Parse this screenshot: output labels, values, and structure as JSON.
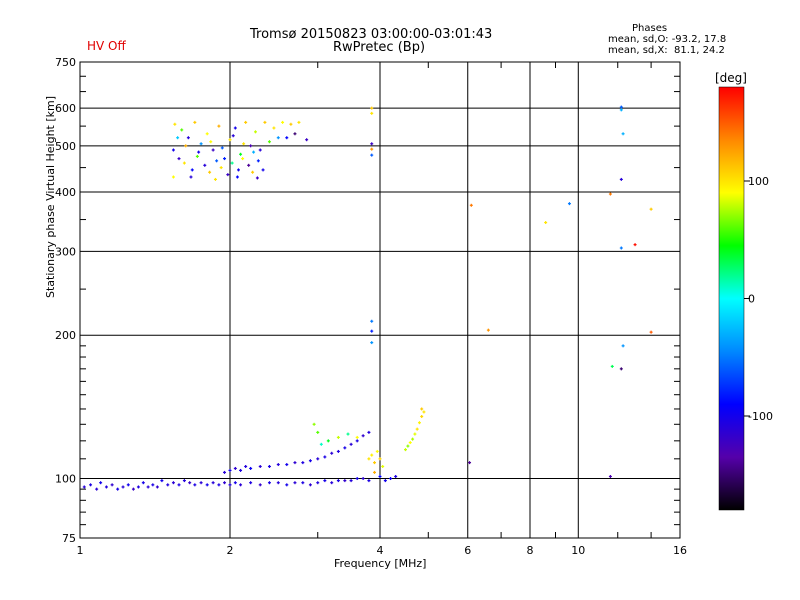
{
  "header": {
    "title_line1": "Tromsø 20150823 03:00:00-03:01:43",
    "title_line2": "RwPretec (Bp)",
    "status": "HV Off",
    "phases_title": "Phases",
    "phases_o": "mean, sd,O: -93.2, 17.8",
    "phases_x": "mean, sd,X:  81.1, 24.2"
  },
  "colorbar": {
    "unit": "[deg]",
    "ticks": [
      "100",
      "0",
      "-100"
    ],
    "tick_values": [
      100,
      0,
      -100
    ],
    "range": [
      -180,
      180
    ],
    "colors": [
      "#000000",
      "#5500aa",
      "#0000ff",
      "#0088ff",
      "#00ffff",
      "#00ff00",
      "#ffff00",
      "#ff8800",
      "#ff0000"
    ]
  },
  "chart_data": {
    "type": "scatter",
    "title": "Tromsø 20150823 03:00:00-03:01:43",
    "subtitle": "RwPretec (Bp)",
    "xlabel": "Frequency [MHz]",
    "ylabel": "Stationary phase Virtual Height [km]",
    "x_scale": "log",
    "y_scale": "log",
    "xlim": [
      1,
      16
    ],
    "ylim": [
      75,
      750
    ],
    "x_ticks": [
      1,
      2,
      4,
      6,
      8,
      10,
      16
    ],
    "x_tick_labels": [
      "1",
      "2",
      "4",
      "6",
      "8",
      "10",
      "16"
    ],
    "y_ticks": [
      75,
      100,
      200,
      300,
      400,
      500,
      600,
      750
    ],
    "y_tick_labels": [
      "75",
      "100",
      "200",
      "300",
      "400",
      "500",
      "600",
      "750"
    ],
    "grid": true,
    "color_quantity": "phase [deg]",
    "points": [
      {
        "x": 1.02,
        "y": 96,
        "c": -110
      },
      {
        "x": 1.05,
        "y": 97,
        "c": -105
      },
      {
        "x": 1.08,
        "y": 95,
        "c": -112
      },
      {
        "x": 1.1,
        "y": 98,
        "c": -100
      },
      {
        "x": 1.13,
        "y": 96,
        "c": -108
      },
      {
        "x": 1.16,
        "y": 97,
        "c": -115
      },
      {
        "x": 1.19,
        "y": 95,
        "c": -102
      },
      {
        "x": 1.22,
        "y": 96,
        "c": -110
      },
      {
        "x": 1.25,
        "y": 97,
        "c": -98
      },
      {
        "x": 1.28,
        "y": 95,
        "c": -120
      },
      {
        "x": 1.31,
        "y": 96,
        "c": -106
      },
      {
        "x": 1.34,
        "y": 98,
        "c": -101
      },
      {
        "x": 1.37,
        "y": 96,
        "c": -111
      },
      {
        "x": 1.4,
        "y": 97,
        "c": -104
      },
      {
        "x": 1.43,
        "y": 96,
        "c": -116
      },
      {
        "x": 1.46,
        "y": 99,
        "c": -100
      },
      {
        "x": 1.5,
        "y": 97,
        "c": -107
      },
      {
        "x": 1.54,
        "y": 98,
        "c": -113
      },
      {
        "x": 1.58,
        "y": 97,
        "c": -103
      },
      {
        "x": 1.62,
        "y": 99,
        "c": -109
      },
      {
        "x": 1.66,
        "y": 98,
        "c": -118
      },
      {
        "x": 1.7,
        "y": 97,
        "c": -105
      },
      {
        "x": 1.75,
        "y": 98,
        "c": -112
      },
      {
        "x": 1.8,
        "y": 97,
        "c": -99
      },
      {
        "x": 1.85,
        "y": 98,
        "c": -110
      },
      {
        "x": 1.9,
        "y": 97,
        "c": -104
      },
      {
        "x": 1.95,
        "y": 98,
        "c": -115
      },
      {
        "x": 2.0,
        "y": 97,
        "c": -108
      },
      {
        "x": 2.05,
        "y": 98,
        "c": -101
      },
      {
        "x": 2.1,
        "y": 97,
        "c": -112
      },
      {
        "x": 2.2,
        "y": 98,
        "c": -106
      },
      {
        "x": 2.3,
        "y": 97,
        "c": -117
      },
      {
        "x": 2.4,
        "y": 98,
        "c": -103
      },
      {
        "x": 2.5,
        "y": 98,
        "c": -109
      },
      {
        "x": 2.6,
        "y": 97,
        "c": -100
      },
      {
        "x": 2.7,
        "y": 98,
        "c": -111
      },
      {
        "x": 2.8,
        "y": 98,
        "c": -105
      },
      {
        "x": 2.9,
        "y": 97,
        "c": -114
      },
      {
        "x": 3.0,
        "y": 98,
        "c": -107
      },
      {
        "x": 3.1,
        "y": 99,
        "c": -102
      },
      {
        "x": 3.2,
        "y": 98,
        "c": -110
      },
      {
        "x": 3.3,
        "y": 99,
        "c": -104
      },
      {
        "x": 3.4,
        "y": 99,
        "c": -116
      },
      {
        "x": 3.5,
        "y": 99,
        "c": -108
      },
      {
        "x": 3.6,
        "y": 100,
        "c": -100
      },
      {
        "x": 3.7,
        "y": 100,
        "c": -112
      },
      {
        "x": 3.8,
        "y": 99,
        "c": -105
      },
      {
        "x": 1.95,
        "y": 103,
        "c": -110
      },
      {
        "x": 2.0,
        "y": 104,
        "c": -100
      },
      {
        "x": 2.05,
        "y": 105,
        "c": -115
      },
      {
        "x": 2.1,
        "y": 104,
        "c": -105
      },
      {
        "x": 2.15,
        "y": 106,
        "c": -108
      },
      {
        "x": 2.2,
        "y": 105,
        "c": -95
      },
      {
        "x": 2.3,
        "y": 106,
        "c": -112
      },
      {
        "x": 2.4,
        "y": 106,
        "c": -103
      },
      {
        "x": 2.5,
        "y": 107,
        "c": -109
      },
      {
        "x": 2.6,
        "y": 107,
        "c": -100
      },
      {
        "x": 2.7,
        "y": 108,
        "c": -114
      },
      {
        "x": 2.8,
        "y": 108,
        "c": -106
      },
      {
        "x": 2.9,
        "y": 109,
        "c": -101
      },
      {
        "x": 3.0,
        "y": 110,
        "c": -110
      },
      {
        "x": 3.1,
        "y": 111,
        "c": -104
      },
      {
        "x": 3.2,
        "y": 113,
        "c": -112
      },
      {
        "x": 3.3,
        "y": 114,
        "c": -107
      },
      {
        "x": 3.4,
        "y": 116,
        "c": -102
      },
      {
        "x": 3.5,
        "y": 118,
        "c": -111
      },
      {
        "x": 3.6,
        "y": 120,
        "c": -105
      },
      {
        "x": 3.7,
        "y": 123,
        "c": -115
      },
      {
        "x": 3.8,
        "y": 125,
        "c": -108
      },
      {
        "x": 3.0,
        "y": 125,
        "c": 60
      },
      {
        "x": 3.15,
        "y": 120,
        "c": 40
      },
      {
        "x": 3.3,
        "y": 122,
        "c": 80
      },
      {
        "x": 3.45,
        "y": 124,
        "c": 20
      },
      {
        "x": 3.6,
        "y": 122,
        "c": 90
      },
      {
        "x": 2.95,
        "y": 130,
        "c": 70
      },
      {
        "x": 3.05,
        "y": 118,
        "c": 10
      },
      {
        "x": 3.8,
        "y": 110,
        "c": 100
      },
      {
        "x": 3.85,
        "y": 112,
        "c": 95
      },
      {
        "x": 3.9,
        "y": 108,
        "c": 110
      },
      {
        "x": 3.95,
        "y": 114,
        "c": 90
      },
      {
        "x": 4.0,
        "y": 110,
        "c": 105
      },
      {
        "x": 4.05,
        "y": 106,
        "c": 85
      },
      {
        "x": 3.9,
        "y": 103,
        "c": 120
      },
      {
        "x": 4.0,
        "y": 101,
        "c": -90
      },
      {
        "x": 4.1,
        "y": 99,
        "c": -100
      },
      {
        "x": 4.2,
        "y": 100,
        "c": -95
      },
      {
        "x": 4.3,
        "y": 101,
        "c": -105
      },
      {
        "x": 4.5,
        "y": 115,
        "c": 80
      },
      {
        "x": 4.55,
        "y": 117,
        "c": 70
      },
      {
        "x": 4.6,
        "y": 119,
        "c": 90
      },
      {
        "x": 4.65,
        "y": 121,
        "c": 75
      },
      {
        "x": 4.7,
        "y": 124,
        "c": 85
      },
      {
        "x": 4.75,
        "y": 127,
        "c": 100
      },
      {
        "x": 4.8,
        "y": 131,
        "c": 95
      },
      {
        "x": 4.85,
        "y": 135,
        "c": 105
      },
      {
        "x": 4.85,
        "y": 140,
        "c": 110
      },
      {
        "x": 4.9,
        "y": 138,
        "c": 100
      },
      {
        "x": 3.85,
        "y": 600,
        "c": 110
      },
      {
        "x": 3.85,
        "y": 585,
        "c": 100
      },
      {
        "x": 3.85,
        "y": 505,
        "c": -120
      },
      {
        "x": 3.85,
        "y": 492,
        "c": 130
      },
      {
        "x": 3.85,
        "y": 478,
        "c": -60
      },
      {
        "x": 3.85,
        "y": 214,
        "c": -50
      },
      {
        "x": 3.85,
        "y": 204,
        "c": -80
      },
      {
        "x": 3.85,
        "y": 193,
        "c": -40
      },
      {
        "x": 6.05,
        "y": 108,
        "c": -140
      },
      {
        "x": 6.1,
        "y": 375,
        "c": 140
      },
      {
        "x": 6.6,
        "y": 205,
        "c": 130
      },
      {
        "x": 8.6,
        "y": 345,
        "c": 100
      },
      {
        "x": 9.6,
        "y": 378,
        "c": -50
      },
      {
        "x": 11.6,
        "y": 396,
        "c": 140
      },
      {
        "x": 11.6,
        "y": 101,
        "c": -130
      },
      {
        "x": 11.7,
        "y": 172,
        "c": 30
      },
      {
        "x": 12.2,
        "y": 603,
        "c": -60
      },
      {
        "x": 12.2,
        "y": 595,
        "c": -30
      },
      {
        "x": 12.3,
        "y": 530,
        "c": -30
      },
      {
        "x": 12.2,
        "y": 425,
        "c": -110
      },
      {
        "x": 12.2,
        "y": 305,
        "c": -50
      },
      {
        "x": 12.3,
        "y": 190,
        "c": -40
      },
      {
        "x": 12.2,
        "y": 170,
        "c": -150
      },
      {
        "x": 13.0,
        "y": 310,
        "c": 175
      },
      {
        "x": 14.0,
        "y": 368,
        "c": 110
      },
      {
        "x": 14.0,
        "y": 203,
        "c": 150
      },
      {
        "x": 1.55,
        "y": 555,
        "c": 100
      },
      {
        "x": 1.6,
        "y": 540,
        "c": 60
      },
      {
        "x": 1.65,
        "y": 520,
        "c": -110
      },
      {
        "x": 1.7,
        "y": 560,
        "c": 110
      },
      {
        "x": 1.75,
        "y": 505,
        "c": -40
      },
      {
        "x": 1.8,
        "y": 530,
        "c": 90
      },
      {
        "x": 1.85,
        "y": 490,
        "c": -120
      },
      {
        "x": 1.9,
        "y": 550,
        "c": 120
      },
      {
        "x": 1.95,
        "y": 470,
        "c": -80
      },
      {
        "x": 2.0,
        "y": 515,
        "c": 100
      },
      {
        "x": 2.05,
        "y": 545,
        "c": -100
      },
      {
        "x": 2.1,
        "y": 480,
        "c": 40
      },
      {
        "x": 2.15,
        "y": 560,
        "c": 110
      },
      {
        "x": 2.2,
        "y": 500,
        "c": -130
      },
      {
        "x": 2.25,
        "y": 535,
        "c": 80
      },
      {
        "x": 1.58,
        "y": 470,
        "c": -120
      },
      {
        "x": 1.62,
        "y": 460,
        "c": 100
      },
      {
        "x": 1.68,
        "y": 445,
        "c": -90
      },
      {
        "x": 1.72,
        "y": 475,
        "c": 60
      },
      {
        "x": 1.78,
        "y": 455,
        "c": -110
      },
      {
        "x": 1.82,
        "y": 440,
        "c": 110
      },
      {
        "x": 1.88,
        "y": 465,
        "c": -60
      },
      {
        "x": 1.92,
        "y": 450,
        "c": 100
      },
      {
        "x": 1.98,
        "y": 435,
        "c": -120
      },
      {
        "x": 2.02,
        "y": 460,
        "c": 20
      },
      {
        "x": 2.08,
        "y": 445,
        "c": -100
      },
      {
        "x": 2.12,
        "y": 470,
        "c": 90
      },
      {
        "x": 2.18,
        "y": 455,
        "c": -140
      },
      {
        "x": 2.22,
        "y": 440,
        "c": 110
      },
      {
        "x": 2.28,
        "y": 465,
        "c": -80
      },
      {
        "x": 2.35,
        "y": 560,
        "c": 110
      },
      {
        "x": 2.45,
        "y": 545,
        "c": 100
      },
      {
        "x": 2.55,
        "y": 560,
        "c": 90
      },
      {
        "x": 2.65,
        "y": 555,
        "c": 110
      },
      {
        "x": 2.75,
        "y": 560,
        "c": 100
      },
      {
        "x": 2.7,
        "y": 530,
        "c": -150
      },
      {
        "x": 2.6,
        "y": 520,
        "c": -90
      },
      {
        "x": 2.4,
        "y": 510,
        "c": 60
      },
      {
        "x": 2.3,
        "y": 490,
        "c": -110
      },
      {
        "x": 1.57,
        "y": 520,
        "c": -20
      },
      {
        "x": 1.63,
        "y": 500,
        "c": 120
      },
      {
        "x": 1.73,
        "y": 485,
        "c": -100
      },
      {
        "x": 1.83,
        "y": 510,
        "c": 90
      },
      {
        "x": 1.93,
        "y": 495,
        "c": -60
      },
      {
        "x": 2.03,
        "y": 525,
        "c": -110
      },
      {
        "x": 2.13,
        "y": 505,
        "c": 100
      },
      {
        "x": 2.23,
        "y": 485,
        "c": -30
      },
      {
        "x": 1.67,
        "y": 430,
        "c": -110
      },
      {
        "x": 1.87,
        "y": 425,
        "c": 100
      },
      {
        "x": 2.07,
        "y": 430,
        "c": -90
      },
      {
        "x": 2.27,
        "y": 428,
        "c": -120
      },
      {
        "x": 1.54,
        "y": 490,
        "c": -100
      },
      {
        "x": 1.54,
        "y": 430,
        "c": 90
      },
      {
        "x": 2.33,
        "y": 445,
        "c": -100
      },
      {
        "x": 2.5,
        "y": 520,
        "c": -40
      },
      {
        "x": 2.85,
        "y": 515,
        "c": -120
      }
    ]
  }
}
